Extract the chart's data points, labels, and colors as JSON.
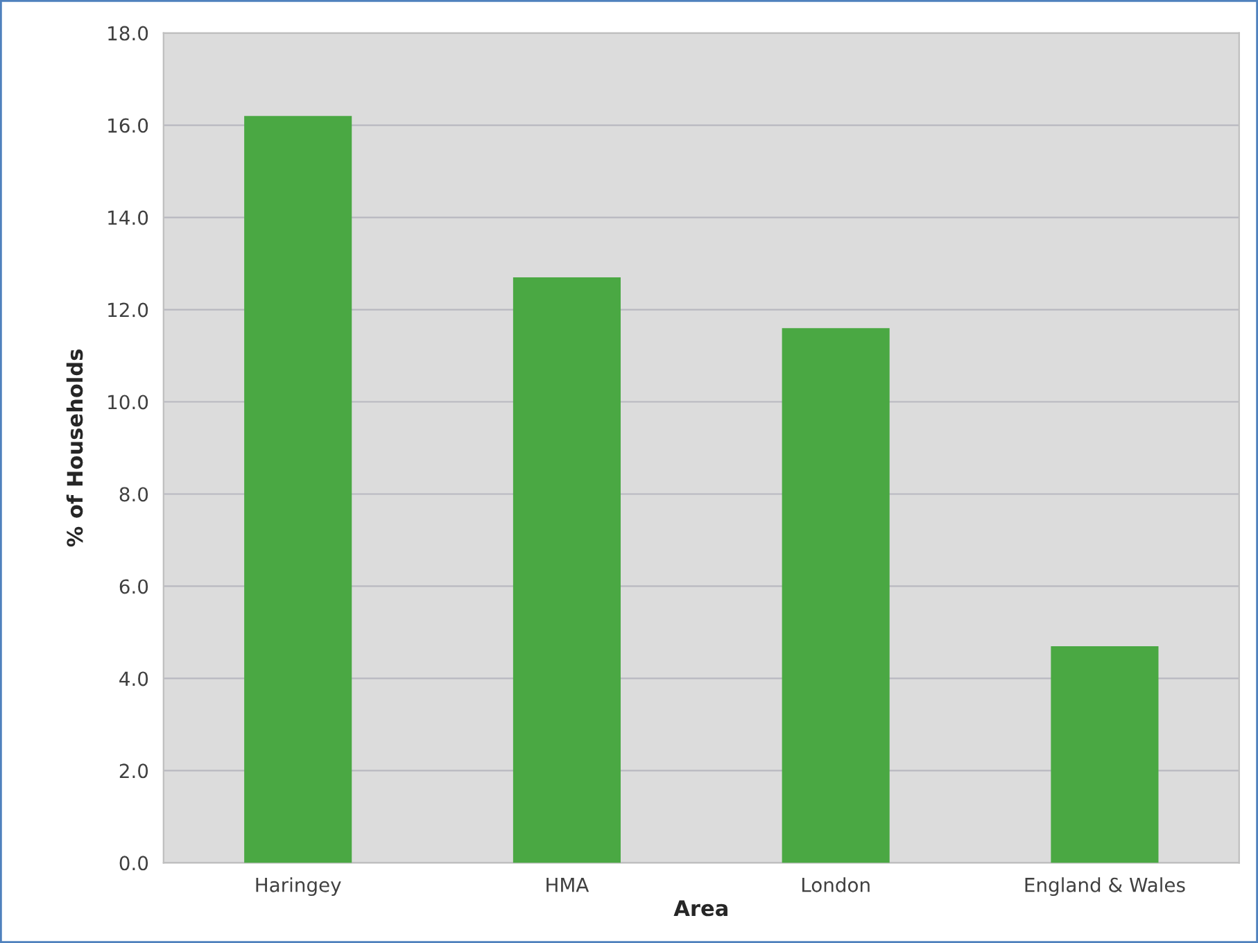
{
  "chart_data": {
    "type": "bar",
    "xlabel": "Area",
    "ylabel": "% of Households",
    "categories": [
      "Haringey",
      "HMA",
      "London",
      "England & Wales"
    ],
    "values": [
      16.2,
      12.7,
      11.6,
      4.7
    ],
    "color": "#4aa843",
    "ylim": [
      0,
      18
    ],
    "yticks": [
      {
        "value": 0,
        "label": "0.0"
      },
      {
        "value": 2,
        "label": "2.0"
      },
      {
        "value": 4,
        "label": "4.0"
      },
      {
        "value": 6,
        "label": "6.0"
      },
      {
        "value": 8,
        "label": "8.0"
      },
      {
        "value": 10,
        "label": "10.0"
      },
      {
        "value": 12,
        "label": "12.0"
      },
      {
        "value": 14,
        "label": "14.0"
      },
      {
        "value": 16,
        "label": "16.0"
      },
      {
        "value": 18,
        "label": "18.0"
      }
    ],
    "grid": "y"
  }
}
